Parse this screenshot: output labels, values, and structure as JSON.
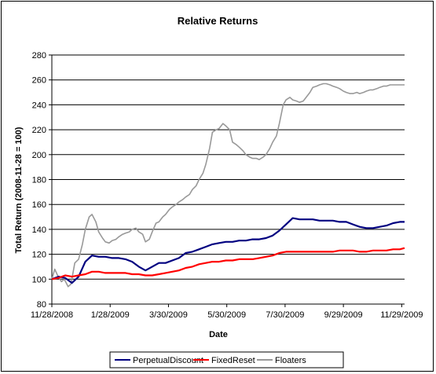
{
  "chart_data": {
    "type": "line",
    "title": "Relative Returns",
    "xlabel": "Date",
    "ylabel": "Total Return (2008-11-28 = 100)",
    "ylim": [
      80,
      280
    ],
    "yticks": [
      80,
      100,
      120,
      140,
      160,
      180,
      200,
      220,
      240,
      260,
      280
    ],
    "xlim": [
      "2008-11-28",
      "2009-12-02"
    ],
    "xticks": [
      "2008-11-28",
      "2009-01-28",
      "2009-03-30",
      "2009-05-30",
      "2009-07-30",
      "2009-09-29",
      "2009-11-29"
    ],
    "xtick_labels": [
      "11/28/2008",
      "1/28/2009",
      "3/30/2009",
      "5/30/2009",
      "7/30/2009",
      "9/29/2009",
      "11/29/2009"
    ],
    "grid": "horizontal",
    "legend": "bottom",
    "series": [
      {
        "name": "PerpetualDiscount",
        "color": "#000080",
        "x": [
          "2008-11-28",
          "2008-12-05",
          "2008-12-12",
          "2008-12-19",
          "2008-12-26",
          "2009-01-02",
          "2009-01-09",
          "2009-01-16",
          "2009-01-23",
          "2009-01-30",
          "2009-02-06",
          "2009-02-13",
          "2009-02-20",
          "2009-02-27",
          "2009-03-06",
          "2009-03-13",
          "2009-03-20",
          "2009-03-27",
          "2009-04-03",
          "2009-04-10",
          "2009-04-17",
          "2009-04-24",
          "2009-05-01",
          "2009-05-08",
          "2009-05-15",
          "2009-05-22",
          "2009-05-29",
          "2009-06-05",
          "2009-06-12",
          "2009-06-19",
          "2009-06-26",
          "2009-07-03",
          "2009-07-10",
          "2009-07-17",
          "2009-07-24",
          "2009-07-31",
          "2009-08-07",
          "2009-08-14",
          "2009-08-21",
          "2009-08-28",
          "2009-09-04",
          "2009-09-11",
          "2009-09-18",
          "2009-09-25",
          "2009-10-02",
          "2009-10-09",
          "2009-10-16",
          "2009-10-23",
          "2009-10-30",
          "2009-11-06",
          "2009-11-13",
          "2009-11-20",
          "2009-11-27",
          "2009-12-02"
        ],
        "values": [
          100,
          102,
          101,
          97,
          102,
          114,
          119,
          118,
          118,
          117,
          117,
          116,
          114,
          110,
          107,
          110,
          113,
          113,
          115,
          117,
          121,
          122,
          124,
          126,
          128,
          129,
          130,
          130,
          131,
          131,
          132,
          132,
          133,
          135,
          139,
          144,
          149,
          148,
          148,
          148,
          147,
          147,
          147,
          146,
          146,
          144,
          142,
          141,
          141,
          142,
          143,
          145,
          146,
          146
        ]
      },
      {
        "name": "FixedReset",
        "color": "#ff0000",
        "x": [
          "2008-11-28",
          "2008-12-05",
          "2008-12-12",
          "2008-12-19",
          "2008-12-26",
          "2009-01-02",
          "2009-01-09",
          "2009-01-16",
          "2009-01-23",
          "2009-01-30",
          "2009-02-06",
          "2009-02-13",
          "2009-02-20",
          "2009-02-27",
          "2009-03-06",
          "2009-03-13",
          "2009-03-20",
          "2009-03-27",
          "2009-04-03",
          "2009-04-10",
          "2009-04-17",
          "2009-04-24",
          "2009-05-01",
          "2009-05-08",
          "2009-05-15",
          "2009-05-22",
          "2009-05-29",
          "2009-06-05",
          "2009-06-12",
          "2009-06-19",
          "2009-06-26",
          "2009-07-03",
          "2009-07-10",
          "2009-07-17",
          "2009-07-24",
          "2009-07-31",
          "2009-08-07",
          "2009-08-14",
          "2009-08-21",
          "2009-08-28",
          "2009-09-04",
          "2009-09-11",
          "2009-09-18",
          "2009-09-25",
          "2009-10-02",
          "2009-10-09",
          "2009-10-16",
          "2009-10-23",
          "2009-10-30",
          "2009-11-06",
          "2009-11-13",
          "2009-11-20",
          "2009-11-27",
          "2009-12-02"
        ],
        "values": [
          100,
          101,
          103,
          102,
          103,
          104,
          106,
          106,
          105,
          105,
          105,
          105,
          104,
          104,
          103,
          103,
          104,
          105,
          106,
          107,
          109,
          110,
          112,
          113,
          114,
          114,
          115,
          115,
          116,
          116,
          116,
          117,
          118,
          119,
          121,
          122,
          122,
          122,
          122,
          122,
          122,
          122,
          122,
          123,
          123,
          123,
          122,
          122,
          123,
          123,
          123,
          124,
          124,
          125
        ]
      },
      {
        "name": "Floaters",
        "color": "#999999",
        "x": [
          "2008-11-28",
          "2008-12-01",
          "2008-12-04",
          "2008-12-08",
          "2008-12-11",
          "2008-12-15",
          "2008-12-18",
          "2008-12-22",
          "2008-12-26",
          "2008-12-30",
          "2009-01-02",
          "2009-01-06",
          "2009-01-09",
          "2009-01-13",
          "2009-01-16",
          "2009-01-20",
          "2009-01-23",
          "2009-01-27",
          "2009-01-30",
          "2009-02-03",
          "2009-02-06",
          "2009-02-10",
          "2009-02-13",
          "2009-02-17",
          "2009-02-20",
          "2009-02-24",
          "2009-02-27",
          "2009-03-03",
          "2009-03-06",
          "2009-03-10",
          "2009-03-13",
          "2009-03-17",
          "2009-03-20",
          "2009-03-24",
          "2009-03-27",
          "2009-03-31",
          "2009-04-03",
          "2009-04-07",
          "2009-04-10",
          "2009-04-14",
          "2009-04-17",
          "2009-04-21",
          "2009-04-24",
          "2009-04-28",
          "2009-05-01",
          "2009-05-05",
          "2009-05-08",
          "2009-05-12",
          "2009-05-15",
          "2009-05-19",
          "2009-05-22",
          "2009-05-26",
          "2009-05-29",
          "2009-06-02",
          "2009-06-05",
          "2009-06-09",
          "2009-06-12",
          "2009-06-16",
          "2009-06-19",
          "2009-06-23",
          "2009-06-26",
          "2009-06-30",
          "2009-07-03",
          "2009-07-07",
          "2009-07-10",
          "2009-07-14",
          "2009-07-17",
          "2009-07-21",
          "2009-07-24",
          "2009-07-28",
          "2009-07-31",
          "2009-08-04",
          "2009-08-07",
          "2009-08-11",
          "2009-08-14",
          "2009-08-18",
          "2009-08-21",
          "2009-08-25",
          "2009-08-28",
          "2009-09-01",
          "2009-09-04",
          "2009-09-08",
          "2009-09-11",
          "2009-09-15",
          "2009-09-18",
          "2009-09-22",
          "2009-09-25",
          "2009-09-29",
          "2009-10-02",
          "2009-10-06",
          "2009-10-09",
          "2009-10-13",
          "2009-10-16",
          "2009-10-20",
          "2009-10-23",
          "2009-10-27",
          "2009-10-30",
          "2009-11-03",
          "2009-11-06",
          "2009-11-10",
          "2009-11-13",
          "2009-11-17",
          "2009-11-20",
          "2009-11-24",
          "2009-11-27",
          "2009-12-02"
        ],
        "values": [
          100,
          108,
          103,
          98,
          100,
          94,
          96,
          113,
          116,
          128,
          140,
          150,
          152,
          146,
          138,
          133,
          130,
          129,
          131,
          132,
          134,
          136,
          137,
          138,
          140,
          141,
          138,
          136,
          130,
          132,
          138,
          145,
          146,
          150,
          152,
          156,
          158,
          160,
          162,
          164,
          166,
          168,
          172,
          175,
          180,
          185,
          192,
          205,
          218,
          220,
          221,
          225,
          223,
          220,
          210,
          208,
          206,
          203,
          200,
          198,
          197,
          197,
          196,
          198,
          200,
          205,
          210,
          215,
          225,
          240,
          244,
          246,
          244,
          243,
          242,
          243,
          246,
          250,
          254,
          255,
          256,
          257,
          257,
          256,
          255,
          254,
          253,
          251,
          250,
          249,
          249,
          250,
          249,
          250,
          251,
          252,
          252,
          253,
          254,
          255,
          255,
          256,
          256,
          256,
          256,
          256
        ]
      }
    ]
  }
}
